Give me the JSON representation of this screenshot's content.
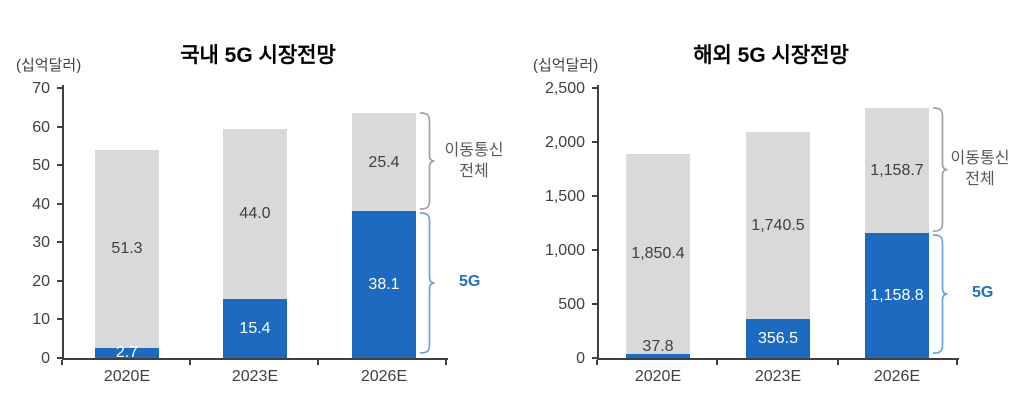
{
  "page": {
    "background": "#ffffff"
  },
  "colors": {
    "bar_5g": "#1d6bc1",
    "bar_total": "#d9d9d9",
    "axis": "#3f3f3f",
    "tick_label": "#404040",
    "gray_label_text": "#3f3f3f",
    "white_label_text": "#ffffff",
    "brace_total": "#a3a3a3",
    "brace_5g": "#6ea3dd",
    "fiveg_text": "#1d6fc8"
  },
  "chart_data": [
    {
      "type": "bar",
      "stacked": true,
      "title": "국내 5G 시장전망",
      "unit_label": "(십억달러)",
      "categories": [
        "2020E",
        "2023E",
        "2026E"
      ],
      "series": [
        {
          "name": "5G",
          "color": "#1d6bc1",
          "values": [
            2.7,
            15.4,
            38.1
          ],
          "value_labels": [
            "2.7",
            "15.4",
            "38.1"
          ]
        },
        {
          "name": "이동통신 전체",
          "color": "#d9d9d9",
          "values": [
            51.3,
            44.0,
            25.4
          ],
          "value_labels": [
            "51.3",
            "44.0",
            "25.4"
          ]
        }
      ],
      "ylim": [
        0,
        70
      ],
      "y_ticks": [
        "70",
        "60",
        "50",
        "40",
        "30",
        "20",
        "10",
        "0"
      ],
      "grid": false,
      "legend_position": "right-braces",
      "annotations": {
        "total_label": "이동통신\n전체",
        "fiveg_label": "5G"
      }
    },
    {
      "type": "bar",
      "stacked": true,
      "title": "해외 5G 시장전망",
      "unit_label": "(십억달러)",
      "categories": [
        "2020E",
        "2023E",
        "2026E"
      ],
      "series": [
        {
          "name": "5G",
          "color": "#1d6bc1",
          "values": [
            37.8,
            356.5,
            1158.8
          ],
          "value_labels": [
            "37.8",
            "356.5",
            "1,158.8"
          ]
        },
        {
          "name": "이동통신 전체",
          "color": "#d9d9d9",
          "values": [
            1850.4,
            1740.5,
            1158.7
          ],
          "value_labels": [
            "1,850.4",
            "1,740.5",
            "1,158.7"
          ]
        }
      ],
      "ylim": [
        0,
        2500
      ],
      "y_ticks": [
        "2,500",
        "2,000",
        "1,500",
        "1,000",
        "500",
        "0"
      ],
      "grid": false,
      "legend_position": "right-braces",
      "annotations": {
        "total_label": "이동통신\n전체",
        "fiveg_label": "5G"
      }
    }
  ]
}
